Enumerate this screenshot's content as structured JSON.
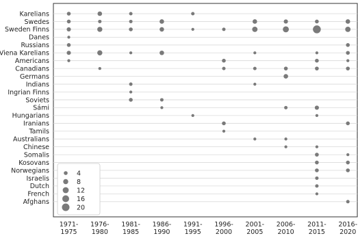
{
  "chart_data": {
    "type": "scatter",
    "title": "",
    "xlabel": "",
    "ylabel": "",
    "x_categories": [
      [
        "1971-",
        "1975"
      ],
      [
        "1976-",
        "1980"
      ],
      [
        "1981-",
        "1985"
      ],
      [
        "1986-",
        "1990"
      ],
      [
        "1991-",
        "1995"
      ],
      [
        "1996-",
        "2000"
      ],
      [
        "2001-",
        "2005"
      ],
      [
        "2006-",
        "2010"
      ],
      [
        "2011-",
        "2015"
      ],
      [
        "2016-",
        "2020"
      ]
    ],
    "y_categories": [
      "Karelians",
      "Swedes",
      "Sweden Finns",
      "Danes",
      "Russians",
      "Viena Karelians",
      "Americans",
      "Canadians",
      "Germans",
      "Indians",
      "Ingrian Finns",
      "Soviets",
      "Sámi",
      "Hungarians",
      "Iranians",
      "Tamils",
      "Australians",
      "Chinese",
      "Somalis",
      "Kosovans",
      "Norwegians",
      "Israelis",
      "Dutch",
      "French",
      "Afghans"
    ],
    "grid": "horizontal",
    "marker_color": "#7a7a7a",
    "points": [
      {
        "group": "Karelians",
        "period": 0,
        "size": 4
      },
      {
        "group": "Karelians",
        "period": 1,
        "size": 6
      },
      {
        "group": "Karelians",
        "period": 2,
        "size": 3
      },
      {
        "group": "Karelians",
        "period": 4,
        "size": 3
      },
      {
        "group": "Swedes",
        "period": 0,
        "size": 4
      },
      {
        "group": "Swedes",
        "period": 1,
        "size": 3
      },
      {
        "group": "Swedes",
        "period": 2,
        "size": 3
      },
      {
        "group": "Swedes",
        "period": 3,
        "size": 6
      },
      {
        "group": "Swedes",
        "period": 6,
        "size": 6
      },
      {
        "group": "Swedes",
        "period": 7,
        "size": 5
      },
      {
        "group": "Swedes",
        "period": 8,
        "size": 4
      },
      {
        "group": "Swedes",
        "period": 9,
        "size": 6
      },
      {
        "group": "Sweden Finns",
        "period": 0,
        "size": 5
      },
      {
        "group": "Sweden Finns",
        "period": 1,
        "size": 8
      },
      {
        "group": "Sweden Finns",
        "period": 2,
        "size": 4
      },
      {
        "group": "Sweden Finns",
        "period": 3,
        "size": 6
      },
      {
        "group": "Sweden Finns",
        "period": 4,
        "size": 2
      },
      {
        "group": "Sweden Finns",
        "period": 5,
        "size": 3
      },
      {
        "group": "Sweden Finns",
        "period": 6,
        "size": 9
      },
      {
        "group": "Sweden Finns",
        "period": 7,
        "size": 12
      },
      {
        "group": "Sweden Finns",
        "period": 8,
        "size": 22
      },
      {
        "group": "Sweden Finns",
        "period": 9,
        "size": 9
      },
      {
        "group": "Danes",
        "period": 0,
        "size": 2
      },
      {
        "group": "Russians",
        "period": 0,
        "size": 4
      },
      {
        "group": "Russians",
        "period": 9,
        "size": 4
      },
      {
        "group": "Viena Karelians",
        "period": 0,
        "size": 5
      },
      {
        "group": "Viena Karelians",
        "period": 1,
        "size": 8
      },
      {
        "group": "Viena Karelians",
        "period": 2,
        "size": 2
      },
      {
        "group": "Viena Karelians",
        "period": 3,
        "size": 6
      },
      {
        "group": "Viena Karelians",
        "period": 6,
        "size": 2
      },
      {
        "group": "Viena Karelians",
        "period": 8,
        "size": 2
      },
      {
        "group": "Viena Karelians",
        "period": 9,
        "size": 4
      },
      {
        "group": "Americans",
        "period": 0,
        "size": 2
      },
      {
        "group": "Americans",
        "period": 5,
        "size": 4
      },
      {
        "group": "Americans",
        "period": 8,
        "size": 4
      },
      {
        "group": "Americans",
        "period": 9,
        "size": 2
      },
      {
        "group": "Canadians",
        "period": 1,
        "size": 2
      },
      {
        "group": "Canadians",
        "period": 5,
        "size": 3
      },
      {
        "group": "Canadians",
        "period": 6,
        "size": 3
      },
      {
        "group": "Canadians",
        "period": 7,
        "size": 4
      },
      {
        "group": "Canadians",
        "period": 8,
        "size": 4
      },
      {
        "group": "Canadians",
        "period": 9,
        "size": 4
      },
      {
        "group": "Germans",
        "period": 7,
        "size": 6
      },
      {
        "group": "Indians",
        "period": 2,
        "size": 3
      },
      {
        "group": "Indians",
        "period": 6,
        "size": 2
      },
      {
        "group": "Ingrian Finns",
        "period": 2,
        "size": 2
      },
      {
        "group": "Soviets",
        "period": 2,
        "size": 4
      },
      {
        "group": "Soviets",
        "period": 3,
        "size": 3
      },
      {
        "group": "Sámi",
        "period": 3,
        "size": 2
      },
      {
        "group": "Sámi",
        "period": 7,
        "size": 3
      },
      {
        "group": "Sámi",
        "period": 8,
        "size": 5
      },
      {
        "group": "Hungarians",
        "period": 4,
        "size": 2
      },
      {
        "group": "Hungarians",
        "period": 8,
        "size": 2
      },
      {
        "group": "Iranians",
        "period": 5,
        "size": 4
      },
      {
        "group": "Iranians",
        "period": 9,
        "size": 4
      },
      {
        "group": "Tamils",
        "period": 5,
        "size": 2
      },
      {
        "group": "Australians",
        "period": 6,
        "size": 2
      },
      {
        "group": "Australians",
        "period": 7,
        "size": 2
      },
      {
        "group": "Chinese",
        "period": 7,
        "size": 2
      },
      {
        "group": "Chinese",
        "period": 8,
        "size": 2
      },
      {
        "group": "Somalis",
        "period": 8,
        "size": 4
      },
      {
        "group": "Somalis",
        "period": 9,
        "size": 2
      },
      {
        "group": "Kosovans",
        "period": 8,
        "size": 4
      },
      {
        "group": "Kosovans",
        "period": 9,
        "size": 4
      },
      {
        "group": "Norwegians",
        "period": 8,
        "size": 4
      },
      {
        "group": "Norwegians",
        "period": 9,
        "size": 4
      },
      {
        "group": "Israelis",
        "period": 8,
        "size": 3
      },
      {
        "group": "Dutch",
        "period": 8,
        "size": 3
      },
      {
        "group": "French",
        "period": 8,
        "size": 2
      },
      {
        "group": "Afghans",
        "period": 9,
        "size": 3
      }
    ],
    "legend": {
      "placement": "bottom-left",
      "entries": [
        {
          "label": "4",
          "size": 4
        },
        {
          "label": "8",
          "size": 8
        },
        {
          "label": "12",
          "size": 12
        },
        {
          "label": "16",
          "size": 16
        },
        {
          "label": "20",
          "size": 20
        }
      ]
    }
  }
}
